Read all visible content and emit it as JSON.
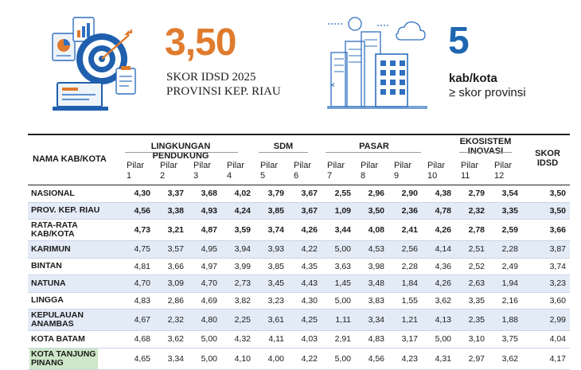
{
  "header": {
    "score_value": "3,50",
    "score_caption_line1": "SKOR IDSD 2025",
    "score_caption_line2": "PROVINSI KEP. RIAU",
    "count_value": "5",
    "count_caption_line1": "kab/kota",
    "count_caption_line2": "≥ skor provinsi",
    "accent_orange": "#e07b2e",
    "accent_blue": "#1f66b2"
  },
  "table": {
    "col_name_header": "NAMA KAB/KOTA",
    "groups": {
      "lingkungan": "LINGKUNGAN PENDUKUNG",
      "sdm": "SDM",
      "pasar": "PASAR",
      "ekosistem_line1": "EKOSISTEM",
      "ekosistem_line2": "INOVASI",
      "skor_line1": "SKOR",
      "skor_line2": "IDSD"
    },
    "pilar_word": "Pilar",
    "pilar_numbers": [
      "1",
      "2",
      "3",
      "4",
      "5",
      "6",
      "7",
      "8",
      "9",
      "10",
      "11",
      "12"
    ],
    "rows": [
      {
        "name": "NASIONAL",
        "values": [
          "4,30",
          "3,37",
          "3,68",
          "4,02",
          "3,79",
          "3,67",
          "2,55",
          "2,96",
          "2,90",
          "4,38",
          "2,79",
          "3,54",
          "3,50"
        ]
      },
      {
        "name": "PROV. KEP. RIAU",
        "values": [
          "4,56",
          "3,38",
          "4,93",
          "4,24",
          "3,85",
          "3,67",
          "1,09",
          "3,50",
          "2,36",
          "4,78",
          "2,32",
          "3,35",
          "3,50"
        ]
      },
      {
        "name": "RATA-RATA KAB/KOTA",
        "values": [
          "4,73",
          "3,21",
          "4,87",
          "3,59",
          "3,74",
          "4,26",
          "3,44",
          "4,08",
          "2,41",
          "4,26",
          "2,78",
          "2,59",
          "3,66"
        ]
      },
      {
        "name": "KARIMUN",
        "values": [
          "4,75",
          "3,57",
          "4,95",
          "3,94",
          "3,93",
          "4,22",
          "5,00",
          "4,53",
          "2,56",
          "4,14",
          "2,51",
          "2,28",
          "3,87"
        ]
      },
      {
        "name": "BINTAN",
        "values": [
          "4,81",
          "3,66",
          "4,97",
          "3,99",
          "3,85",
          "4,35",
          "3,63",
          "3,98",
          "2,28",
          "4,36",
          "2,52",
          "2,49",
          "3,74"
        ]
      },
      {
        "name": "NATUNA",
        "values": [
          "4,70",
          "3,09",
          "4,70",
          "2,73",
          "3,45",
          "4,43",
          "1,45",
          "3,48",
          "1,84",
          "4,26",
          "2,63",
          "1,94",
          "3,23"
        ]
      },
      {
        "name": "LINGGA",
        "values": [
          "4,83",
          "2,86",
          "4,69",
          "3,82",
          "3,23",
          "4,30",
          "5,00",
          "3,83",
          "1,55",
          "3,62",
          "3,35",
          "2,16",
          "3,60"
        ]
      },
      {
        "name": "KEPULAUAN ANAMBAS",
        "values": [
          "4,67",
          "2,32",
          "4,80",
          "2,25",
          "3,61",
          "4,25",
          "1,11",
          "3,34",
          "1,21",
          "4,13",
          "2,35",
          "1,88",
          "2,99"
        ]
      },
      {
        "name": "KOTA BATAM",
        "values": [
          "4,68",
          "3,62",
          "5,00",
          "4,32",
          "4,11",
          "4,03",
          "2,91",
          "4,83",
          "3,17",
          "5,00",
          "3,10",
          "3,75",
          "4,04"
        ]
      },
      {
        "name": "KOTA TANJUNG PINANG",
        "values": [
          "4,65",
          "3,34",
          "5,00",
          "4,10",
          "4,00",
          "4,22",
          "5,00",
          "4,56",
          "4,23",
          "4,31",
          "2,97",
          "3,62",
          "4,17"
        ]
      }
    ]
  }
}
